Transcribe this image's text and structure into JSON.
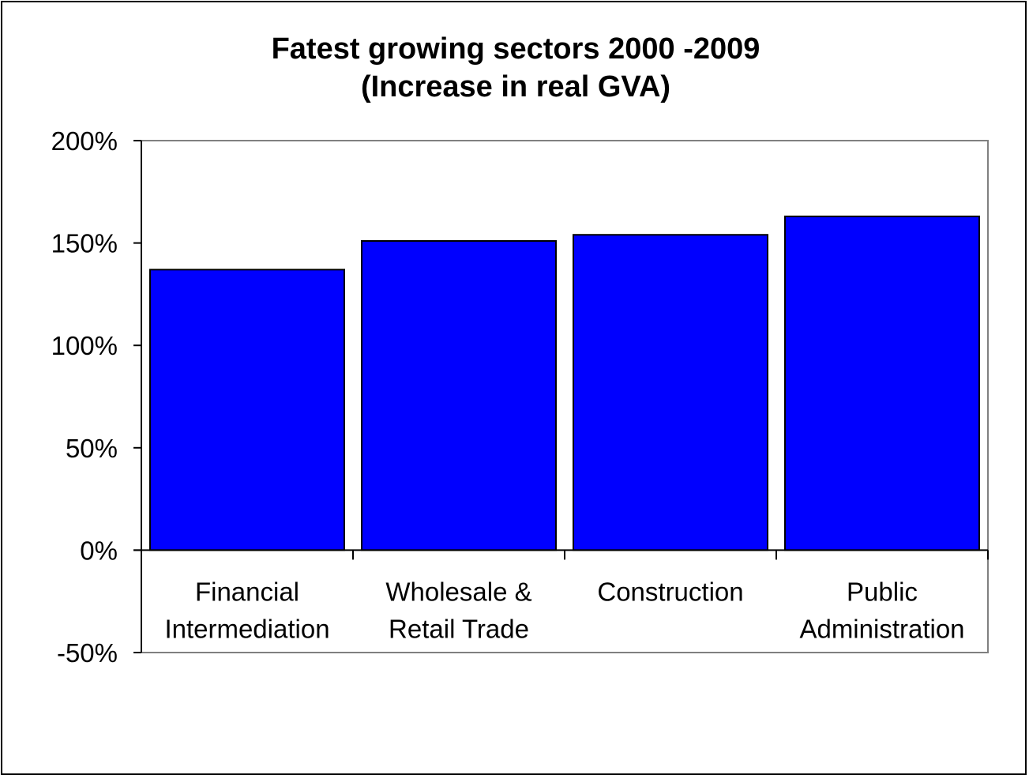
{
  "chart_data": {
    "type": "bar",
    "title": [
      "Fatest growing sectors 2000 -2009",
      "(Increase in real GVA)"
    ],
    "categories": [
      [
        "Financial",
        "Intermediation"
      ],
      [
        "Wholesale &",
        "Retail Trade"
      ],
      [
        "Construction"
      ],
      [
        "Public",
        "Administration"
      ]
    ],
    "values": [
      137,
      151,
      154,
      163
    ],
    "value_unit": "%",
    "ylim": [
      -50,
      200
    ],
    "yticks": [
      -50,
      0,
      50,
      100,
      150,
      200
    ],
    "ytick_labels": [
      "-50%",
      "0%",
      "50%",
      "100%",
      "150%",
      "200%"
    ],
    "xlabel": "",
    "ylabel": "",
    "grid": false,
    "legend": "none",
    "bar_color": "#0000FF"
  }
}
